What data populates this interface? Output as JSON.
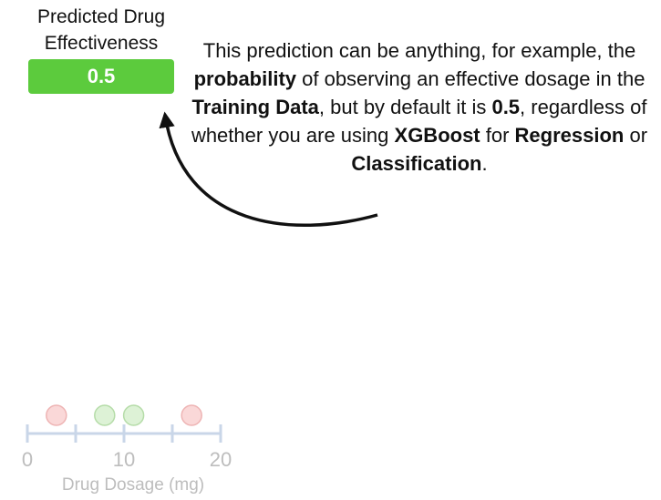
{
  "header": {
    "line1": "Predicted Drug",
    "line2": "Effectiveness"
  },
  "prediction": {
    "value": "0.5",
    "color": "#5ccb3d"
  },
  "explanation": {
    "t1": "This prediction can be anything, for example, the ",
    "b1": "probability",
    "t2": " of observing an effective dosage in the ",
    "b2": "Training Data",
    "t3": ", but by default it is ",
    "b3": "0.5",
    "t4": ", regardless of whether you are using ",
    "b4": "XGBoost",
    "t5": " for ",
    "b5": "Regression",
    "t6": " or ",
    "b6": "Classification",
    "t7": "."
  },
  "axis": {
    "label": "Drug Dosage (mg)",
    "ticks": [
      "0",
      "10",
      "20"
    ],
    "color": "#c9d6e8",
    "label_color": "#bdbdbd"
  },
  "points": [
    {
      "dosage": 3,
      "effective": false
    },
    {
      "dosage": 8,
      "effective": true
    },
    {
      "dosage": 11,
      "effective": true
    },
    {
      "dosage": 17,
      "effective": false
    }
  ],
  "colors": {
    "effective_fill": "#ddf2d6",
    "effective_stroke": "#b5dca8",
    "ineffective_fill": "#fad8d8",
    "ineffective_stroke": "#eeb4b4"
  }
}
